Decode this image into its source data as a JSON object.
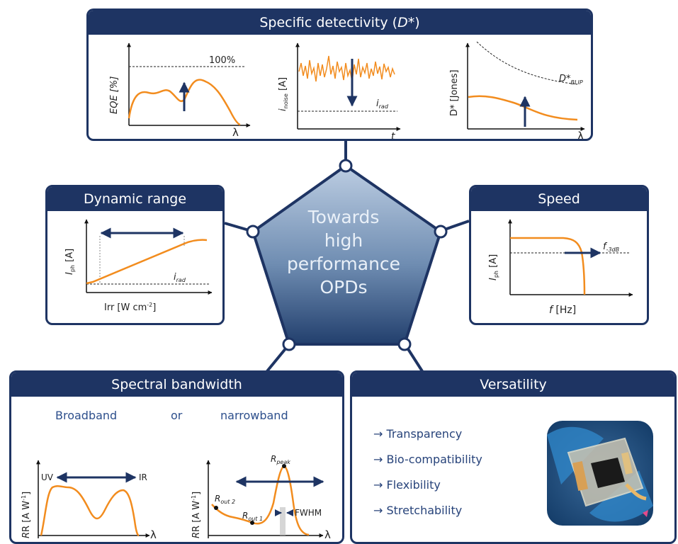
{
  "center": {
    "line1": "Towards",
    "line2": "high",
    "line3": "performance",
    "line4": "OPDs"
  },
  "detectivity": {
    "title_prefix": "Specific detectivity (",
    "title_symbol": "D*",
    "title_suffix": ")",
    "eqe": {
      "ylabel": "EQE [%]",
      "xlabel": "λ",
      "ref": "100%"
    },
    "noise": {
      "ylabel_main": "i",
      "ylabel_sub": "noise",
      "ylabel_unit": " [A]",
      "xlabel": "t",
      "ref_main": "i",
      "ref_sub": "rad"
    },
    "dstar": {
      "ylabel": "D* [Jones]",
      "xlabel": "λ",
      "ref_main": "D*",
      "ref_sub": "BLIP"
    }
  },
  "dynamic_range": {
    "title": "Dynamic range",
    "ylabel_main": "I",
    "ylabel_sub": "ph",
    "ylabel_unit": " [A]",
    "xlabel_main": "Irr [W cm",
    "xlabel_sup": "-2",
    "xlabel_end": "]",
    "ref_main": "i",
    "ref_sub": "rad"
  },
  "speed": {
    "title": "Speed",
    "ylabel_main": "I",
    "ylabel_sub": "ph",
    "ylabel_unit": " [A]",
    "xlabel_main": "f",
    "xlabel_unit": " [Hz]",
    "ref_main": "f",
    "ref_sub": "-3dB"
  },
  "spectral": {
    "title": "Spectral bandwidth",
    "broadband": "Broadband",
    "or": "or",
    "narrowband": "narrowband",
    "left": {
      "ylabel_main": "R [A W",
      "ylabel_sup": "-1",
      "ylabel_end": "]",
      "xlabel": "λ",
      "uv": "UV",
      "ir": "IR"
    },
    "right": {
      "ylabel_main": "R [A W",
      "ylabel_sup": "-1",
      "ylabel_end": "]",
      "xlabel": "λ",
      "peak_main": "R",
      "peak_sub": "peak",
      "out2_main": "R",
      "out2_sub": "out 2",
      "out1_main": "R",
      "out1_sub": "out 1",
      "fwhm": "FWHM"
    }
  },
  "versatility": {
    "title": "Versatility",
    "items": [
      "→ Transparency",
      "→ Bio-compatibility",
      "→ Flexibility",
      "→ Stretchability"
    ]
  },
  "colors": {
    "navy": "#1e3463",
    "orange": "#f28c1e",
    "pentagon_top": "#b8cbe0",
    "pentagon_bottom": "#294a7a"
  }
}
